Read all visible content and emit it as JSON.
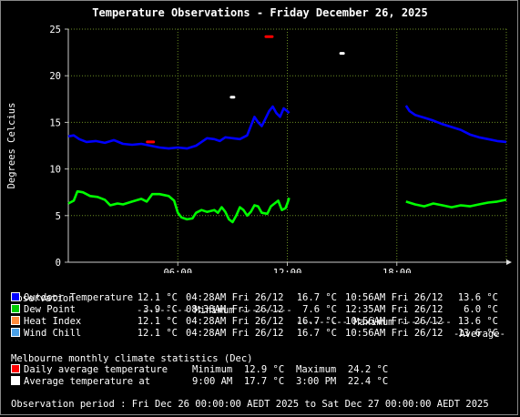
{
  "title": "Temperature Observations - Friday December 26, 2025",
  "chart_data": {
    "type": "line",
    "ylabel": "Degrees Celcius",
    "ylim": [
      0,
      25
    ],
    "xlim": [
      0,
      24
    ],
    "y_ticks": [
      "0",
      "5",
      "10",
      "15",
      "20",
      "25"
    ],
    "x_ticks": [
      {
        "x": 6,
        "label": "06:00"
      },
      {
        "x": 12,
        "label": "12:00"
      },
      {
        "x": 18,
        "label": "18:00"
      }
    ],
    "grid": true,
    "series": [
      {
        "name": "Outdoor Temperature",
        "color": "#0000ff",
        "segments": [
          [
            [
              0,
              13.5
            ],
            [
              0.3,
              13.6
            ],
            [
              0.6,
              13.2
            ],
            [
              1,
              12.9
            ],
            [
              1.5,
              13.0
            ],
            [
              2,
              12.8
            ],
            [
              2.5,
              13.1
            ],
            [
              3,
              12.7
            ],
            [
              3.5,
              12.6
            ],
            [
              4,
              12.7
            ],
            [
              4.5,
              12.5
            ],
            [
              5,
              12.3
            ],
            [
              5.5,
              12.2
            ],
            [
              6,
              12.3
            ],
            [
              6.5,
              12.2
            ],
            [
              7,
              12.5
            ],
            [
              7.3,
              12.9
            ],
            [
              7.6,
              13.3
            ],
            [
              8,
              13.2
            ],
            [
              8.3,
              13.0
            ],
            [
              8.6,
              13.4
            ],
            [
              9,
              13.3
            ],
            [
              9.4,
              13.2
            ],
            [
              9.8,
              13.6
            ],
            [
              10,
              14.6
            ],
            [
              10.2,
              15.6
            ],
            [
              10.4,
              15.0
            ],
            [
              10.6,
              14.6
            ],
            [
              10.8,
              15.4
            ],
            [
              11,
              16.2
            ],
            [
              11.2,
              16.7
            ],
            [
              11.4,
              16.0
            ],
            [
              11.6,
              15.6
            ],
            [
              11.8,
              16.5
            ],
            [
              12,
              16.2
            ],
            [
              12.1,
              16.0
            ]
          ],
          [
            [
              18.5,
              16.8
            ],
            [
              18.7,
              16.2
            ],
            [
              19,
              15.8
            ],
            [
              19.5,
              15.5
            ],
            [
              20,
              15.2
            ],
            [
              20.5,
              14.8
            ],
            [
              21,
              14.5
            ],
            [
              21.5,
              14.2
            ],
            [
              22,
              13.7
            ],
            [
              22.5,
              13.4
            ],
            [
              23,
              13.2
            ],
            [
              23.5,
              13.0
            ],
            [
              24,
              12.9
            ]
          ]
        ]
      },
      {
        "name": "Dew Point",
        "color": "#00ff00",
        "segments": [
          [
            [
              0,
              6.3
            ],
            [
              0.3,
              6.6
            ],
            [
              0.5,
              7.6
            ],
            [
              0.8,
              7.5
            ],
            [
              1.2,
              7.1
            ],
            [
              1.6,
              7.0
            ],
            [
              2,
              6.7
            ],
            [
              2.3,
              6.1
            ],
            [
              2.7,
              6.3
            ],
            [
              3,
              6.2
            ],
            [
              3.5,
              6.5
            ],
            [
              4,
              6.8
            ],
            [
              4.3,
              6.5
            ],
            [
              4.6,
              7.3
            ],
            [
              5,
              7.3
            ],
            [
              5.5,
              7.1
            ],
            [
              5.8,
              6.6
            ],
            [
              6,
              5.3
            ],
            [
              6.2,
              4.8
            ],
            [
              6.5,
              4.6
            ],
            [
              6.8,
              4.7
            ],
            [
              7,
              5.3
            ],
            [
              7.3,
              5.6
            ],
            [
              7.6,
              5.4
            ],
            [
              8,
              5.6
            ],
            [
              8.2,
              5.3
            ],
            [
              8.4,
              5.9
            ],
            [
              8.6,
              5.4
            ],
            [
              8.8,
              4.6
            ],
            [
              9,
              4.3
            ],
            [
              9.2,
              5.0
            ],
            [
              9.4,
              5.9
            ],
            [
              9.6,
              5.6
            ],
            [
              9.8,
              5.0
            ],
            [
              10,
              5.4
            ],
            [
              10.2,
              6.1
            ],
            [
              10.4,
              6.0
            ],
            [
              10.6,
              5.3
            ],
            [
              10.9,
              5.2
            ],
            [
              11.1,
              6.0
            ],
            [
              11.3,
              6.3
            ],
            [
              11.5,
              6.6
            ],
            [
              11.7,
              5.6
            ],
            [
              11.9,
              5.8
            ],
            [
              12,
              6.3
            ],
            [
              12.1,
              6.9
            ]
          ],
          [
            [
              18.5,
              6.5
            ],
            [
              19,
              6.2
            ],
            [
              19.5,
              6.0
            ],
            [
              20,
              6.3
            ],
            [
              20.5,
              6.1
            ],
            [
              21,
              5.9
            ],
            [
              21.5,
              6.1
            ],
            [
              22,
              6.0
            ],
            [
              22.5,
              6.2
            ],
            [
              23,
              6.4
            ],
            [
              23.5,
              6.5
            ],
            [
              24,
              6.7
            ]
          ]
        ]
      }
    ],
    "markers": [
      {
        "name": "Daily average temperature (Dec) min",
        "color": "#ff0000",
        "x": 4.5,
        "y": 12.9
      },
      {
        "name": "Daily average temperature (Dec) max",
        "color": "#ff0000",
        "x": 11.0,
        "y": 24.2
      },
      {
        "name": "Average temperature at 9:00 AM",
        "color": "#ffffff",
        "x": 9.0,
        "y": 17.7
      },
      {
        "name": "Average temperature at 3:00 PM",
        "color": "#ffffff",
        "x": 15.0,
        "y": 22.4
      }
    ]
  },
  "table": {
    "header": {
      "observation": "Observation",
      "minimum": "--------- Minimum ---------",
      "maximum": "--------- Maximum ---------",
      "average": "-Average-"
    },
    "rows": [
      {
        "label": "Outdoor Temperature",
        "color": "#0000ff",
        "min": "12.1 °C",
        "min_time": "04:28AM Fri 26/12",
        "max": "16.7 °C",
        "max_time": "10:56AM Fri 26/12",
        "avg": "13.6 °C"
      },
      {
        "label": "Dew Point",
        "color": "#00cc00",
        "min": "3.9 °C",
        "min_time": "08:38AM Fri 26/12",
        "max": "7.6 °C",
        "max_time": "12:35AM Fri 26/12",
        "avg": "6.0 °C"
      },
      {
        "label": "Heat Index",
        "color": "#ff8c3c",
        "min": "12.1 °C",
        "min_time": "04:28AM Fri 26/12",
        "max": "16.7 °C",
        "max_time": "10:56AM Fri 26/12",
        "avg": "13.6 °C"
      },
      {
        "label": "Wind Chill",
        "color": "#4aa0e6",
        "min": "12.1 °C",
        "min_time": "04:28AM Fri 26/12",
        "max": "16.7 °C",
        "max_time": "10:56AM Fri 26/12",
        "avg": "13.6 °C"
      }
    ]
  },
  "climate": {
    "heading": "Melbourne monthly climate statistics (Dec)",
    "rows": [
      {
        "label": "Daily average temperature",
        "color": "#ff0000",
        "col1": "Minimum  12.9 °C",
        "col2": "Maximum  24.2 °C"
      },
      {
        "label": "Average temperature at",
        "color": "#ffffff",
        "col1": "9:00 AM  17.7 °C",
        "col2": "3:00 PM  22.4 °C"
      }
    ]
  },
  "period": "Observation period : Fri Dec 26 00:00:00 AEDT 2025 to Sat Dec 27 00:00:00 AEDT 2025"
}
